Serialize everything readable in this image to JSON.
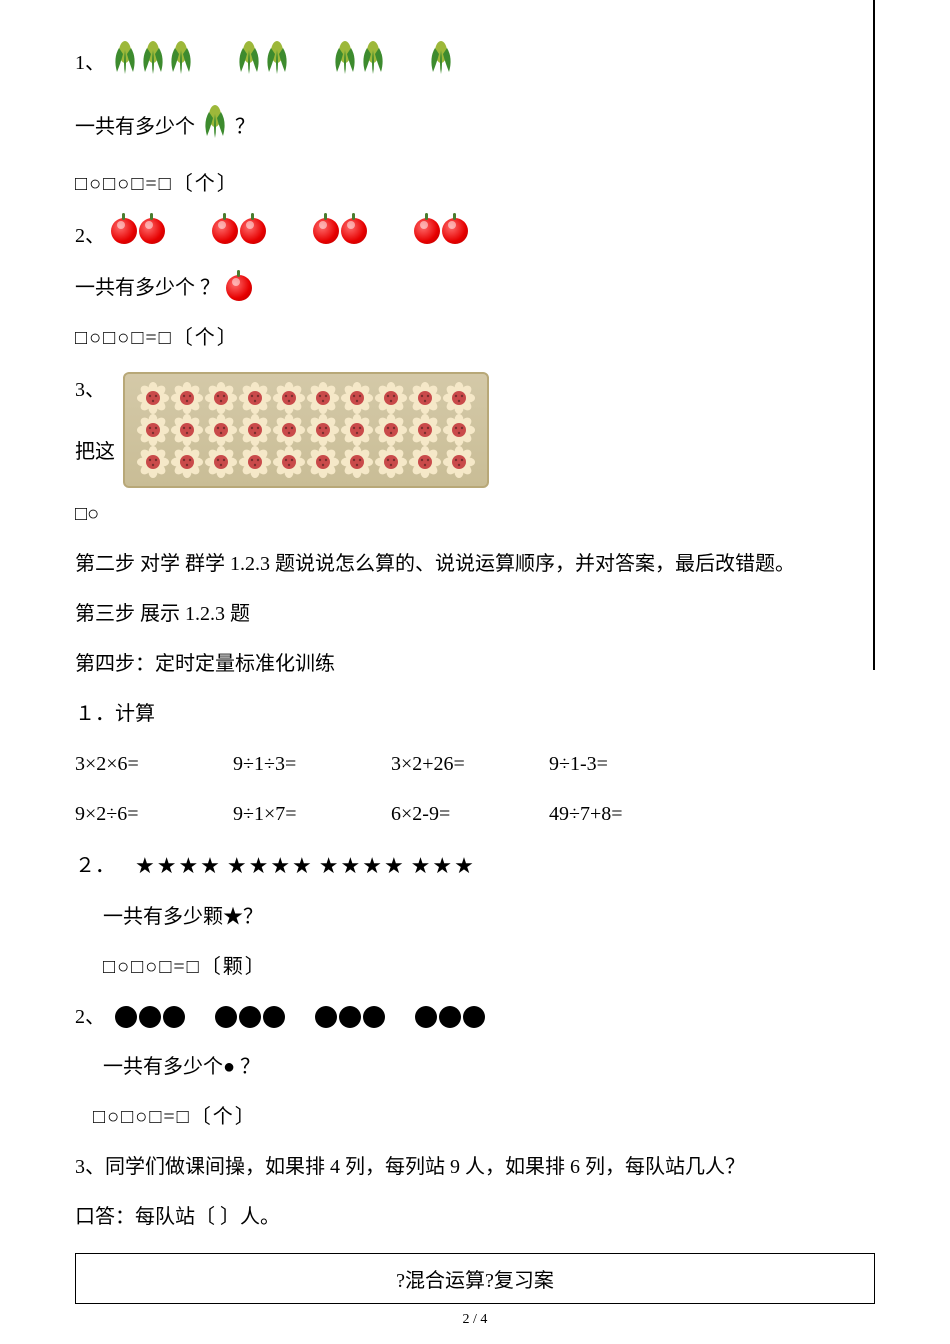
{
  "q1": {
    "label": "1、",
    "groups": [
      3,
      2,
      2,
      1
    ],
    "question": "一共有多少个",
    "trailing_groups": [
      1
    ],
    "question_mark": "？",
    "formula": "□○□○□=□〔个〕",
    "corn_colors": {
      "husk": "#3d8b2e",
      "kernel": "#9db83a"
    }
  },
  "q2": {
    "label": "2、",
    "groups": [
      2,
      2,
      2,
      2
    ],
    "question": "一共有多少个    ？",
    "formula": "□○□○□=□〔个〕",
    "apple_color": "#e60000"
  },
  "q3": {
    "label": "3、",
    "line2": "把这",
    "line3": "□○",
    "cookie_rows": 3,
    "cookie_cols": 10,
    "cookie_colors": {
      "petal": "#f5e8c8",
      "center": "#c94a4a",
      "seed": "#7a2e2e"
    }
  },
  "step2": "第二步  对学 群学 1.2.3 题说说怎么算的、说说运算顺序，并对答案，最后改错题。",
  "step3": "第三步  展示 1.2.3 题",
  "step4": "第四步：定时定量标准化训练",
  "ex1": {
    "title": "１．计算",
    "row1": [
      "3×2×6=",
      "9÷1÷3=",
      "3×2+26=",
      "9÷1-3="
    ],
    "row2": [
      "9×2÷6=",
      "9÷1×7=",
      "6×2-9=",
      "49÷7+8="
    ]
  },
  "ex2": {
    "title_prefix": "２．",
    "star_groups": [
      "★★★★",
      "★★★★",
      "★★★★",
      "★★★"
    ],
    "question": "一共有多少颗★？",
    "formula": "□○□○□=□〔颗〕"
  },
  "ex2b": {
    "label": "2、",
    "circle_groups": [
      3,
      3,
      3,
      3
    ],
    "question": "一共有多少个●  ？",
    "formula": "□○□○□=□〔个〕"
  },
  "ex3": {
    "text": "3、同学们做课间操，如果排 4 列，每列站 9 人，如果排 6 列，每队站几人？",
    "answer": "口答：每队站〔    〕人。"
  },
  "footer": "?混合运算?复习案",
  "page": "2 / 4"
}
